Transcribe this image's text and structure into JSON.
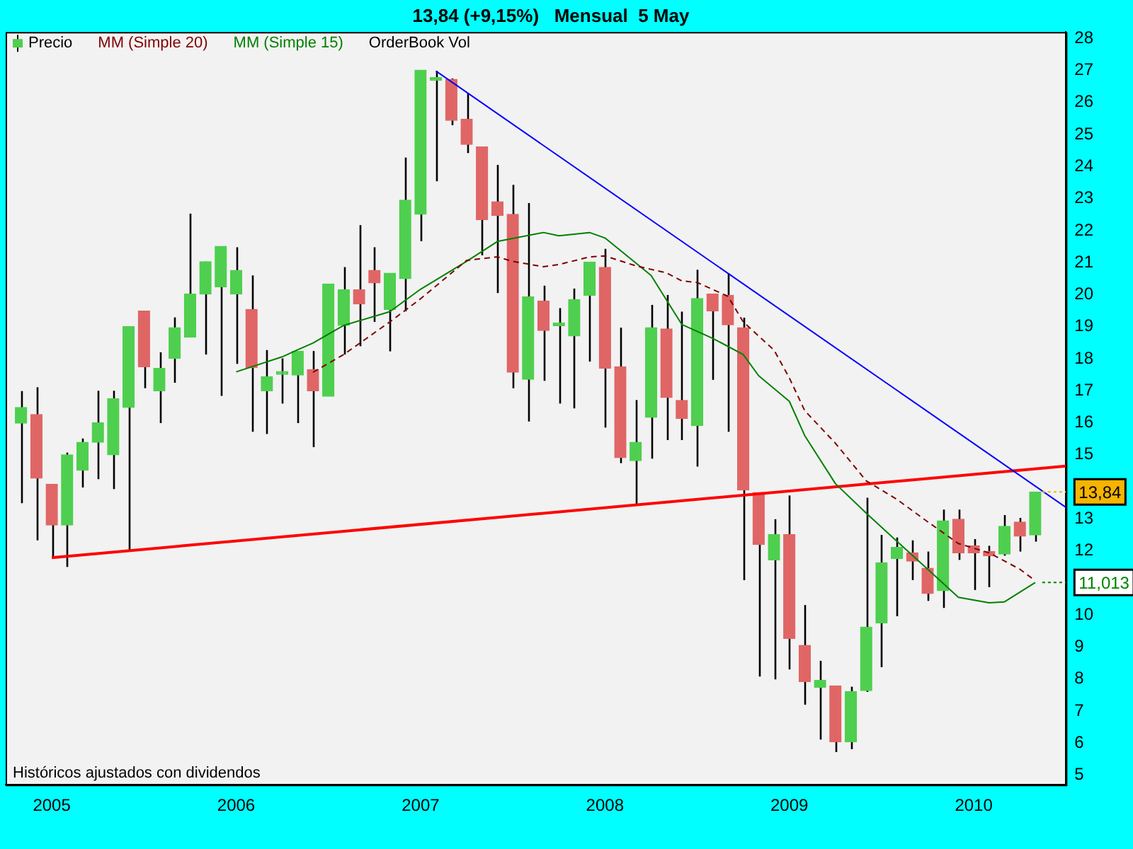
{
  "chart_data": {
    "type": "candlestick",
    "title": "13,84 (+9,15%)   Mensual  5 May",
    "series": [
      {
        "name": "Precio",
        "x": [
          "2004-11",
          "2004-12",
          "2005-01",
          "2005-02",
          "2005-03",
          "2005-04",
          "2005-05",
          "2005-06",
          "2005-07",
          "2005-08",
          "2005-09",
          "2005-10",
          "2005-11",
          "2005-12",
          "2006-01",
          "2006-02",
          "2006-03",
          "2006-04",
          "2006-05",
          "2006-06",
          "2006-07",
          "2006-08",
          "2006-09",
          "2006-10",
          "2006-11",
          "2006-12",
          "2007-01",
          "2007-02",
          "2007-03",
          "2007-04",
          "2007-05",
          "2007-06",
          "2007-07",
          "2007-08",
          "2007-09",
          "2007-10",
          "2007-11",
          "2007-12",
          "2008-01",
          "2008-02",
          "2008-03",
          "2008-04",
          "2008-05",
          "2008-06",
          "2008-07",
          "2008-08",
          "2008-09",
          "2008-10",
          "2008-11",
          "2008-12",
          "2009-01",
          "2009-02",
          "2009-03",
          "2009-04",
          "2009-05",
          "2009-06",
          "2009-07",
          "2009-08",
          "2009-09",
          "2009-10",
          "2009-11",
          "2009-12",
          "2010-01",
          "2010-02",
          "2010-03",
          "2010-04",
          "2010-05"
        ],
        "ohlc": [
          [
            15.99,
            16.99,
            13.49,
            16.48
          ],
          [
            16.26,
            17.11,
            12.33,
            14.27
          ],
          [
            14.08,
            14.08,
            11.8,
            12.81
          ],
          [
            12.81,
            15.07,
            11.5,
            15.0
          ],
          [
            14.52,
            15.51,
            13.98,
            15.39
          ],
          [
            15.39,
            17.0,
            14.24,
            16.0
          ],
          [
            15.0,
            17.0,
            13.93,
            16.75
          ],
          [
            16.48,
            19.0,
            12.01,
            19.0
          ],
          [
            19.49,
            19.49,
            17.08,
            17.75
          ],
          [
            17.0,
            18.2,
            15.99,
            17.7
          ],
          [
            18.01,
            19.29,
            17.25,
            18.97
          ],
          [
            18.67,
            22.53,
            18.67,
            20.02
          ],
          [
            20.02,
            21.03,
            18.13,
            21.03
          ],
          [
            20.24,
            21.51,
            16.84,
            21.51
          ],
          [
            20.02,
            21.48,
            17.84,
            20.76
          ],
          [
            19.54,
            20.6,
            15.72,
            17.72
          ],
          [
            17.0,
            18.27,
            15.65,
            17.44
          ],
          [
            17.51,
            18.01,
            16.6,
            17.51
          ],
          [
            17.49,
            18.23,
            15.99,
            18.23
          ],
          [
            17.66,
            18.24,
            15.24,
            17.0
          ],
          [
            16.83,
            20.33,
            16.83,
            20.33
          ],
          [
            19.04,
            20.86,
            18.13,
            20.15
          ],
          [
            20.15,
            22.17,
            18.39,
            19.71
          ],
          [
            20.76,
            21.48,
            19.15,
            20.37
          ],
          [
            19.54,
            20.67,
            18.23,
            20.67
          ],
          [
            20.5,
            24.28,
            19.48,
            22.95
          ],
          [
            22.51,
            27.01,
            21.67,
            27.01
          ],
          [
            26.69,
            26.98,
            23.54,
            26.69
          ],
          [
            26.72,
            26.75,
            25.29,
            25.44
          ],
          [
            25.48,
            26.28,
            24.42,
            24.69
          ],
          [
            24.61,
            24.61,
            21.23,
            22.34
          ],
          [
            22.9,
            24.05,
            20.05,
            22.47
          ],
          [
            22.51,
            23.43,
            17.08,
            17.58
          ],
          [
            17.36,
            22.86,
            16.04,
            19.93
          ],
          [
            19.8,
            20.28,
            17.31,
            18.88
          ],
          [
            19.03,
            19.58,
            16.6,
            19.03
          ],
          [
            18.71,
            20.19,
            16.45,
            19.84
          ],
          [
            19.98,
            21.02,
            17.91,
            21.02
          ],
          [
            20.85,
            21.43,
            15.85,
            17.7
          ],
          [
            17.75,
            18.97,
            14.74,
            14.91
          ],
          [
            14.82,
            16.71,
            13.47,
            15.39
          ],
          [
            16.17,
            19.68,
            14.88,
            18.97
          ],
          [
            18.93,
            19.99,
            15.46,
            16.79
          ],
          [
            16.7,
            19.47,
            15.46,
            16.13
          ],
          [
            15.91,
            20.78,
            14.63,
            19.88
          ],
          [
            20.02,
            20.02,
            17.34,
            19.49
          ],
          [
            19.98,
            20.67,
            15.72,
            19.06
          ],
          [
            18.97,
            19.28,
            11.09,
            13.9
          ],
          [
            13.82,
            13.82,
            8.08,
            12.2
          ],
          [
            11.72,
            12.99,
            7.99,
            12.51
          ],
          [
            12.51,
            13.73,
            8.3,
            9.27
          ],
          [
            9.05,
            10.31,
            7.2,
            7.92
          ],
          [
            7.74,
            8.57,
            6.11,
            7.96
          ],
          [
            7.79,
            7.79,
            5.72,
            6.04
          ],
          [
            6.04,
            7.76,
            5.81,
            7.61
          ],
          [
            7.64,
            13.66,
            7.6,
            9.62
          ],
          [
            9.75,
            12.5,
            8.37,
            11.63
          ],
          [
            11.76,
            12.42,
            9.96,
            12.11
          ],
          [
            11.94,
            12.33,
            11.09,
            11.68
          ],
          [
            11.46,
            11.98,
            10.44,
            10.67
          ],
          [
            10.76,
            13.29,
            10.22,
            12.94
          ],
          [
            12.99,
            13.29,
            11.72,
            11.94
          ],
          [
            12.16,
            12.37,
            10.78,
            11.94
          ],
          [
            11.98,
            12.16,
            10.87,
            11.85
          ],
          [
            11.9,
            13.12,
            11.85,
            12.77
          ],
          [
            12.9,
            13.03,
            11.98,
            12.46
          ],
          [
            12.5,
            13.84,
            12.29,
            13.84
          ]
        ],
        "colors": [
          "#4fcf4f",
          "#e06666",
          "#e06666",
          "#4fcf4f",
          "#4fcf4f",
          "#4fcf4f",
          "#4fcf4f",
          "#4fcf4f",
          "#e06666",
          "#4fcf4f",
          "#4fcf4f",
          "#4fcf4f",
          "#4fcf4f",
          "#4fcf4f",
          "#4fcf4f",
          "#e06666",
          "#4fcf4f",
          "#4fcf4f",
          "#4fcf4f",
          "#e06666",
          "#4fcf4f",
          "#4fcf4f",
          "#e06666",
          "#e06666",
          "#4fcf4f",
          "#4fcf4f",
          "#4fcf4f",
          "#4fcf4f",
          "#e06666",
          "#e06666",
          "#e06666",
          "#e06666",
          "#e06666",
          "#4fcf4f",
          "#e06666",
          "#4fcf4f",
          "#4fcf4f",
          "#4fcf4f",
          "#e06666",
          "#e06666",
          "#4fcf4f",
          "#4fcf4f",
          "#e06666",
          "#e06666",
          "#4fcf4f",
          "#e06666",
          "#e06666",
          "#e06666",
          "#e06666",
          "#4fcf4f",
          "#e06666",
          "#e06666",
          "#4fcf4f",
          "#e06666",
          "#4fcf4f",
          "#4fcf4f",
          "#4fcf4f",
          "#4fcf4f",
          "#e06666",
          "#e06666",
          "#4fcf4f",
          "#e06666",
          "#e06666",
          "#e06666",
          "#4fcf4f",
          "#e06666",
          "#4fcf4f"
        ]
      },
      {
        "type": "line",
        "name": "MM (Simple 20)",
        "color": "#800000",
        "line_style": "dashed",
        "x": [
          "2006-06",
          "2006-08",
          "2006-11",
          "2007-01",
          "2007-04",
          "2007-06",
          "2007-07",
          "2007-09",
          "2007-10",
          "2007-12",
          "2008-01",
          "2008-03",
          "2008-05",
          "2008-06",
          "2008-07",
          "2008-09",
          "2008-10",
          "2008-12",
          "2009-01",
          "2009-02",
          "2009-04",
          "2009-06",
          "2009-08",
          "2009-10",
          "2009-12",
          "2010-02",
          "2010-04",
          "2010-05"
        ],
        "values": [
          17.58,
          18.13,
          19.15,
          19.87,
          21.07,
          21.18,
          21.04,
          20.87,
          20.94,
          21.18,
          21.21,
          20.9,
          20.68,
          20.43,
          20.38,
          19.95,
          19.15,
          18.27,
          17.4,
          16.38,
          15.36,
          14.19,
          13.61,
          12.91,
          12.23,
          11.94,
          11.43,
          11.07
        ]
      },
      {
        "type": "line",
        "name": "MM (Simple 15)",
        "color": "#008000",
        "line_style": "solid",
        "x": [
          "2006-01",
          "2006-04",
          "2006-05",
          "2006-06",
          "2006-08",
          "2006-11",
          "2007-01",
          "2007-04",
          "2007-06",
          "2007-09",
          "2007-10",
          "2007-12",
          "2008-01",
          "2008-04",
          "2008-06",
          "2008-08",
          "2008-10",
          "2008-11",
          "2009-01",
          "2009-02",
          "2009-04",
          "2009-06",
          "2009-08",
          "2009-10",
          "2009-12",
          "2010-02",
          "2010-03",
          "2010-05"
        ],
        "values": [
          17.59,
          18.06,
          18.28,
          18.49,
          19.04,
          19.47,
          20.17,
          21.04,
          21.66,
          21.94,
          21.84,
          21.94,
          21.77,
          20.6,
          19.07,
          18.64,
          18.13,
          17.47,
          16.67,
          15.6,
          14.1,
          13.18,
          12.3,
          11.43,
          10.55,
          10.38,
          10.41,
          11.013
        ]
      },
      {
        "type": "line",
        "color": "#0000ff",
        "line_style": "solid",
        "x": [
          "2007-02",
          "2010-07"
        ],
        "values": [
          26.98,
          13.36
        ]
      },
      {
        "type": "line",
        "color": "#ff0000",
        "line_style": "solid",
        "x": [
          "2005-01",
          "2010-07"
        ],
        "values": [
          11.79,
          14.65
        ]
      }
    ],
    "xlim": [
      "2004-10",
      "2010-07"
    ],
    "xticks": [
      {
        "value": "2005-01",
        "label": "2005"
      },
      {
        "value": "2006-01",
        "label": "2006"
      },
      {
        "value": "2007-01",
        "label": "2007"
      },
      {
        "value": "2008-01",
        "label": "2008"
      },
      {
        "value": "2009-01",
        "label": "2009"
      },
      {
        "value": "2010-01",
        "label": "2010"
      }
    ],
    "ylim": [
      4.7,
      28.2
    ],
    "yticks": [
      5,
      6,
      7,
      8,
      9,
      10,
      12,
      13,
      15,
      16,
      17,
      18,
      19,
      20,
      21,
      22,
      23,
      24,
      25,
      26,
      27,
      28
    ],
    "legend": "top left",
    "marker": "none",
    "annotations": [
      "OrderBook Vol",
      "Históricos ajustados con dividendos",
      {
        "text": "13,84",
        "x": "2010-05",
        "y": 13.84
      },
      {
        "text": "11,013",
        "x": "2010-05",
        "y": 11.013
      }
    ]
  }
}
